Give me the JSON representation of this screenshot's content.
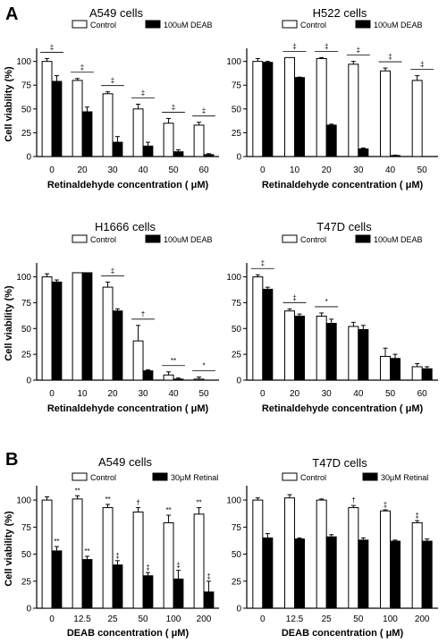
{
  "panel_labels": [
    "A",
    "B"
  ],
  "chart_data": [
    {
      "type": "bar",
      "title": "A549 cells",
      "xlabel": "Retinaldehyde concentration ( μM)",
      "ylabel": "Cell viability (%)",
      "ylim": [
        0,
        110
      ],
      "yticks": [
        0,
        25,
        50,
        75,
        100
      ],
      "categories": [
        "0",
        "20",
        "30",
        "40",
        "50",
        "60"
      ],
      "series": [
        {
          "name": "Control",
          "values": [
            100,
            80,
            66,
            50,
            35,
            33
          ],
          "errors": [
            3,
            2,
            2,
            5,
            5,
            3
          ],
          "color": "#ffffff"
        },
        {
          "name": "100uM DEAB",
          "values": [
            79,
            47,
            15,
            11,
            5,
            2
          ],
          "errors": [
            6,
            5,
            6,
            4,
            2,
            1
          ],
          "color": "#000000"
        }
      ],
      "annotations": [
        {
          "category": 0,
          "text": "‡"
        },
        {
          "category": 1,
          "text": "‡"
        },
        {
          "category": 2,
          "text": "‡"
        },
        {
          "category": 3,
          "text": "‡"
        },
        {
          "category": 4,
          "text": "‡"
        },
        {
          "category": 5,
          "text": "‡"
        }
      ],
      "legend": "top"
    },
    {
      "type": "bar",
      "title": "H522 cells",
      "xlabel": "Retinaldehyde concentration ( μM)",
      "ylabel": "",
      "ylim": [
        0,
        110
      ],
      "yticks": [
        0,
        25,
        50,
        75,
        100
      ],
      "categories": [
        "0",
        "10",
        "20",
        "30",
        "40",
        "50"
      ],
      "series": [
        {
          "name": "Control",
          "values": [
            100,
            104,
            103,
            97,
            90,
            80
          ],
          "errors": [
            3,
            0,
            1,
            3,
            3,
            5
          ],
          "color": "#ffffff"
        },
        {
          "name": "100uM DEAB",
          "values": [
            99,
            83,
            33,
            8,
            1,
            0
          ],
          "errors": [
            1,
            0.5,
            1,
            1,
            0.5,
            0
          ],
          "color": "#000000"
        }
      ],
      "annotations": [
        {
          "category": 1,
          "text": "‡"
        },
        {
          "category": 2,
          "text": "‡"
        },
        {
          "category": 3,
          "text": "‡"
        },
        {
          "category": 4,
          "text": "‡"
        },
        {
          "category": 5,
          "text": "‡"
        }
      ],
      "legend": "top"
    },
    {
      "type": "bar",
      "title": "H1666 cells",
      "xlabel": "Retinaldehyde concentration ( μM)",
      "ylabel": "Cell viability (%)",
      "ylim": [
        0,
        110
      ],
      "yticks": [
        0,
        25,
        50,
        75,
        100
      ],
      "categories": [
        "0",
        "10",
        "20",
        "30",
        "40",
        "50"
      ],
      "series": [
        {
          "name": "Control",
          "values": [
            100,
            104,
            90,
            38,
            5,
            1
          ],
          "errors": [
            3,
            0,
            5,
            15,
            3,
            2
          ],
          "color": "#ffffff"
        },
        {
          "name": "100uM DEAB",
          "values": [
            95,
            104,
            67,
            9,
            1,
            0
          ],
          "errors": [
            2,
            0,
            2,
            1,
            1,
            0
          ],
          "color": "#000000"
        }
      ],
      "annotations": [
        {
          "category": 2,
          "text": "‡"
        },
        {
          "category": 3,
          "text": "†"
        },
        {
          "category": 4,
          "text": "**"
        },
        {
          "category": 5,
          "text": "*"
        }
      ],
      "legend": "top"
    },
    {
      "type": "bar",
      "title": "T47D cells",
      "xlabel": "Retinaldehyde concentration ( μM)",
      "ylabel": "",
      "ylim": [
        0,
        110
      ],
      "yticks": [
        0,
        25,
        50,
        75,
        100
      ],
      "categories": [
        "0",
        "20",
        "30",
        "40",
        "50",
        "60"
      ],
      "series": [
        {
          "name": "Control",
          "values": [
            100,
            67,
            62,
            52,
            23,
            13
          ],
          "errors": [
            2,
            2,
            3,
            4,
            8,
            3
          ],
          "color": "#ffffff"
        },
        {
          "name": "100uM DEAB",
          "values": [
            88,
            62,
            55,
            49,
            21,
            11
          ],
          "errors": [
            2,
            2,
            4,
            4,
            4,
            2
          ],
          "color": "#000000"
        }
      ],
      "annotations": [
        {
          "category": 0,
          "text": "‡"
        },
        {
          "category": 1,
          "text": "‡"
        },
        {
          "category": 2,
          "text": "*"
        }
      ],
      "legend": "top"
    },
    {
      "type": "bar",
      "title": "A549 cells",
      "xlabel": "DEAB concentration ( μM)",
      "ylabel": "Cell viability (%)",
      "ylim": [
        0,
        110
      ],
      "yticks": [
        0,
        25,
        50,
        75,
        100
      ],
      "categories": [
        "0",
        "12.5",
        "25",
        "50",
        "100",
        "200"
      ],
      "series": [
        {
          "name": "Control",
          "values": [
            100,
            101,
            93,
            89,
            79,
            87
          ],
          "errors": [
            3,
            3,
            3,
            4,
            7,
            6
          ],
          "color": "#ffffff"
        },
        {
          "name": "30μM Retinal",
          "values": [
            53,
            45,
            40,
            30,
            27,
            15
          ],
          "errors": [
            4,
            3,
            4,
            3,
            8,
            10
          ],
          "color": "#000000"
        }
      ],
      "annotations": [
        {
          "category": 0,
          "series": 1,
          "text": "**"
        },
        {
          "category": 1,
          "series": 0,
          "text": "**"
        },
        {
          "category": 1,
          "series": 1,
          "text": "**"
        },
        {
          "category": 2,
          "series": 0,
          "text": "**"
        },
        {
          "category": 2,
          "series": 1,
          "text": "‡"
        },
        {
          "category": 3,
          "series": 0,
          "text": "†"
        },
        {
          "category": 3,
          "series": 1,
          "text": "‡"
        },
        {
          "category": 4,
          "series": 0,
          "text": "**"
        },
        {
          "category": 4,
          "series": 1,
          "text": "‡"
        },
        {
          "category": 5,
          "series": 0,
          "text": "**"
        },
        {
          "category": 5,
          "series": 1,
          "text": "‡"
        }
      ],
      "legend": "top"
    },
    {
      "type": "bar",
      "title": "T47D cells",
      "xlabel": "DEAB concentration ( μM)",
      "ylabel": "",
      "ylim": [
        0,
        110
      ],
      "yticks": [
        0,
        25,
        50,
        75,
        100
      ],
      "categories": [
        "0",
        "12.5",
        "25",
        "50",
        "100",
        "200"
      ],
      "series": [
        {
          "name": "Control",
          "values": [
            100,
            102,
            100,
            93,
            90,
            79
          ],
          "errors": [
            2,
            3,
            1,
            2,
            1,
            2
          ],
          "color": "#ffffff"
        },
        {
          "name": "30μM Retinal",
          "values": [
            65,
            64,
            66,
            63,
            62,
            62
          ],
          "errors": [
            4,
            1,
            2,
            2,
            1,
            2
          ],
          "color": "#000000"
        }
      ],
      "annotations": [
        {
          "category": 3,
          "series": 0,
          "text": "†"
        },
        {
          "category": 4,
          "series": 0,
          "text": "‡"
        },
        {
          "category": 5,
          "series": 0,
          "text": "‡"
        }
      ],
      "legend": "top"
    }
  ]
}
